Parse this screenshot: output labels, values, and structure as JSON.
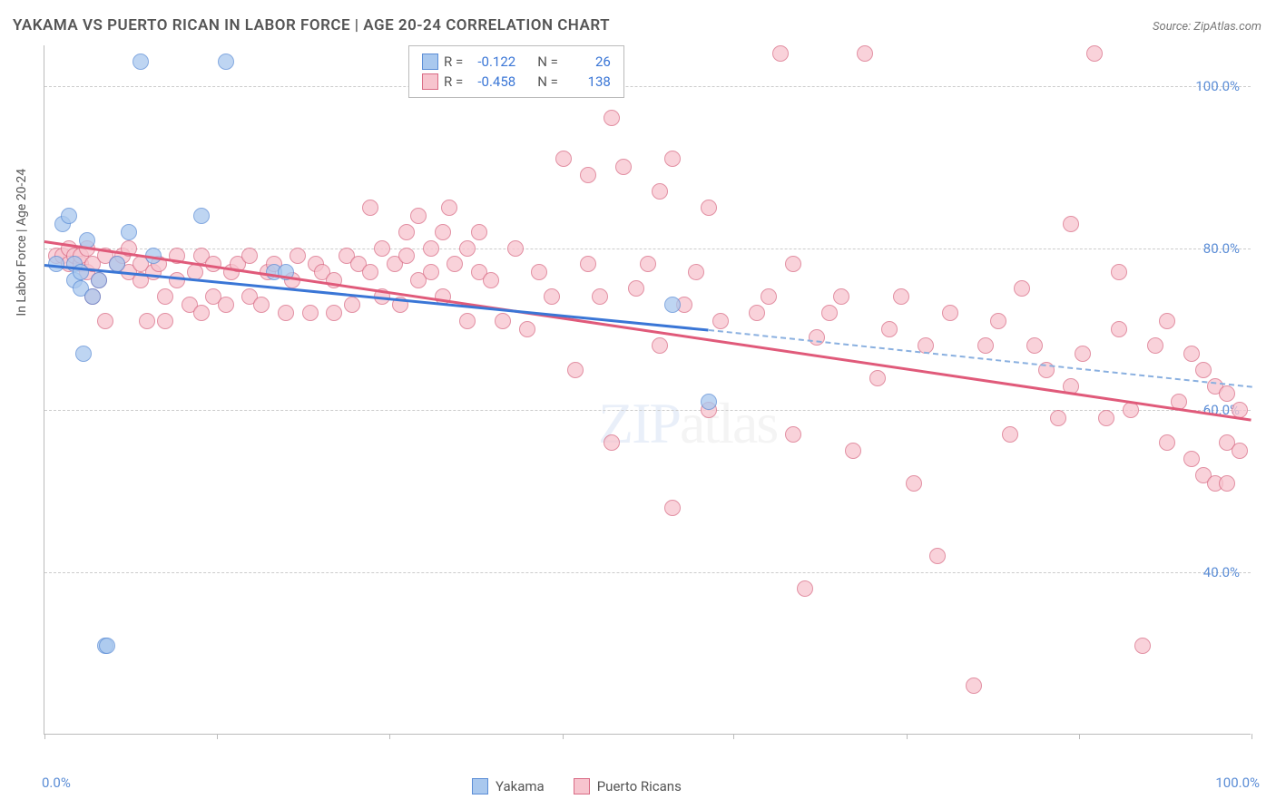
{
  "title": "YAKAMA VS PUERTO RICAN IN LABOR FORCE | AGE 20-24 CORRELATION CHART",
  "source": "Source: ZipAtlas.com",
  "ylabel": "In Labor Force | Age 20-24",
  "watermark_a": "ZIP",
  "watermark_b": "atlas",
  "chart": {
    "type": "scatter",
    "xlim": [
      0,
      100
    ],
    "ylim": [
      20,
      105
    ],
    "yticks": [
      40,
      60,
      80,
      100
    ],
    "ytick_labels": [
      "40.0%",
      "60.0%",
      "80.0%",
      "100.0%"
    ],
    "xticks": [
      0,
      14.3,
      28.6,
      42.9,
      57.1,
      71.4,
      85.7,
      100
    ],
    "xtick_labels_left": "0.0%",
    "xtick_labels_right": "100.0%",
    "background": "#ffffff",
    "grid_color": "#cccccc",
    "series": {
      "yakama": {
        "label": "Yakama",
        "color_fill": "#a9c8ee",
        "color_stroke": "#5b8dd6",
        "r_value": "-0.122",
        "n_value": "26",
        "trendline": {
          "x1": 0,
          "y1": 78,
          "x2": 55,
          "y2": 70,
          "color": "#3a76d6"
        },
        "trendline_dash": {
          "x1": 55,
          "y1": 70,
          "x2": 100,
          "y2": 63,
          "color": "#8ab0e0"
        },
        "points": [
          [
            1,
            78
          ],
          [
            1.5,
            83
          ],
          [
            2,
            84
          ],
          [
            2.5,
            76
          ],
          [
            2.5,
            78
          ],
          [
            3,
            77
          ],
          [
            3,
            75
          ],
          [
            3.2,
            67
          ],
          [
            3.5,
            81
          ],
          [
            4,
            74
          ],
          [
            4.5,
            76
          ],
          [
            5,
            31
          ],
          [
            5.2,
            31
          ],
          [
            6,
            78
          ],
          [
            7,
            82
          ],
          [
            8,
            103
          ],
          [
            9,
            79
          ],
          [
            13,
            84
          ],
          [
            15,
            103
          ],
          [
            19,
            77
          ],
          [
            20,
            77
          ],
          [
            52,
            73
          ],
          [
            55,
            61
          ]
        ]
      },
      "puerto_ricans": {
        "label": "Puerto Ricans",
        "color_fill": "#f7c4ce",
        "color_stroke": "#d96b85",
        "r_value": "-0.458",
        "n_value": "138",
        "trendline": {
          "x1": 0,
          "y1": 81,
          "x2": 100,
          "y2": 59,
          "color": "#e05a7a"
        },
        "points": [
          [
            1,
            79
          ],
          [
            1.5,
            79
          ],
          [
            2,
            78
          ],
          [
            2,
            80
          ],
          [
            2.5,
            79
          ],
          [
            3,
            78
          ],
          [
            3,
            79
          ],
          [
            3.5,
            77
          ],
          [
            3.5,
            80
          ],
          [
            4,
            74
          ],
          [
            4,
            78
          ],
          [
            4.5,
            76
          ],
          [
            5,
            79
          ],
          [
            5,
            71
          ],
          [
            6,
            78
          ],
          [
            6.5,
            79
          ],
          [
            7,
            80
          ],
          [
            7,
            77
          ],
          [
            8,
            78
          ],
          [
            8,
            76
          ],
          [
            8.5,
            71
          ],
          [
            9,
            77
          ],
          [
            9.5,
            78
          ],
          [
            10,
            71
          ],
          [
            10,
            74
          ],
          [
            11,
            79
          ],
          [
            11,
            76
          ],
          [
            12,
            73
          ],
          [
            12.5,
            77
          ],
          [
            13,
            79
          ],
          [
            13,
            72
          ],
          [
            14,
            78
          ],
          [
            14,
            74
          ],
          [
            15,
            73
          ],
          [
            15.5,
            77
          ],
          [
            16,
            78
          ],
          [
            17,
            74
          ],
          [
            17,
            79
          ],
          [
            18,
            73
          ],
          [
            18.5,
            77
          ],
          [
            19,
            78
          ],
          [
            20,
            72
          ],
          [
            20.5,
            76
          ],
          [
            21,
            79
          ],
          [
            22,
            72
          ],
          [
            22.5,
            78
          ],
          [
            23,
            77
          ],
          [
            24,
            76
          ],
          [
            24,
            72
          ],
          [
            25,
            79
          ],
          [
            25.5,
            73
          ],
          [
            26,
            78
          ],
          [
            27,
            77
          ],
          [
            27,
            85
          ],
          [
            28,
            74
          ],
          [
            28,
            80
          ],
          [
            29,
            78
          ],
          [
            29.5,
            73
          ],
          [
            30,
            82
          ],
          [
            30,
            79
          ],
          [
            31,
            76
          ],
          [
            31,
            84
          ],
          [
            32,
            77
          ],
          [
            32,
            80
          ],
          [
            33,
            82
          ],
          [
            33,
            74
          ],
          [
            33.5,
            85
          ],
          [
            34,
            78
          ],
          [
            35,
            80
          ],
          [
            35,
            71
          ],
          [
            36,
            77
          ],
          [
            36,
            82
          ],
          [
            37,
            76
          ],
          [
            38,
            71
          ],
          [
            39,
            80
          ],
          [
            40,
            70
          ],
          [
            41,
            77
          ],
          [
            42,
            103
          ],
          [
            42,
            74
          ],
          [
            43,
            91
          ],
          [
            44,
            65
          ],
          [
            45,
            78
          ],
          [
            45,
            89
          ],
          [
            46,
            74
          ],
          [
            47,
            96
          ],
          [
            47,
            56
          ],
          [
            48,
            90
          ],
          [
            49,
            75
          ],
          [
            50,
            78
          ],
          [
            51,
            68
          ],
          [
            51,
            87
          ],
          [
            52,
            48
          ],
          [
            52,
            91
          ],
          [
            53,
            73
          ],
          [
            54,
            77
          ],
          [
            55,
            60
          ],
          [
            55,
            85
          ],
          [
            56,
            71
          ],
          [
            59,
            72
          ],
          [
            60,
            74
          ],
          [
            61,
            104
          ],
          [
            62,
            57
          ],
          [
            62,
            78
          ],
          [
            63,
            38
          ],
          [
            64,
            69
          ],
          [
            65,
            72
          ],
          [
            66,
            74
          ],
          [
            67,
            55
          ],
          [
            68,
            104
          ],
          [
            69,
            64
          ],
          [
            70,
            70
          ],
          [
            71,
            74
          ],
          [
            72,
            51
          ],
          [
            73,
            68
          ],
          [
            74,
            42
          ],
          [
            75,
            72
          ],
          [
            77,
            26
          ],
          [
            78,
            68
          ],
          [
            79,
            71
          ],
          [
            80,
            57
          ],
          [
            81,
            75
          ],
          [
            82,
            68
          ],
          [
            83,
            65
          ],
          [
            84,
            59
          ],
          [
            85,
            63
          ],
          [
            85,
            83
          ],
          [
            86,
            67
          ],
          [
            87,
            104
          ],
          [
            88,
            59
          ],
          [
            89,
            77
          ],
          [
            89,
            70
          ],
          [
            90,
            60
          ],
          [
            91,
            31
          ],
          [
            92,
            68
          ],
          [
            93,
            71
          ],
          [
            93,
            56
          ],
          [
            94,
            61
          ],
          [
            95,
            54
          ],
          [
            95,
            67
          ],
          [
            96,
            52
          ],
          [
            96,
            65
          ],
          [
            97,
            63
          ],
          [
            97,
            51
          ],
          [
            98,
            62
          ],
          [
            98,
            56
          ],
          [
            98,
            51
          ],
          [
            99,
            60
          ],
          [
            99,
            55
          ]
        ]
      }
    }
  },
  "legend_stats": {
    "r_label": "R =",
    "n_label": "N ="
  }
}
